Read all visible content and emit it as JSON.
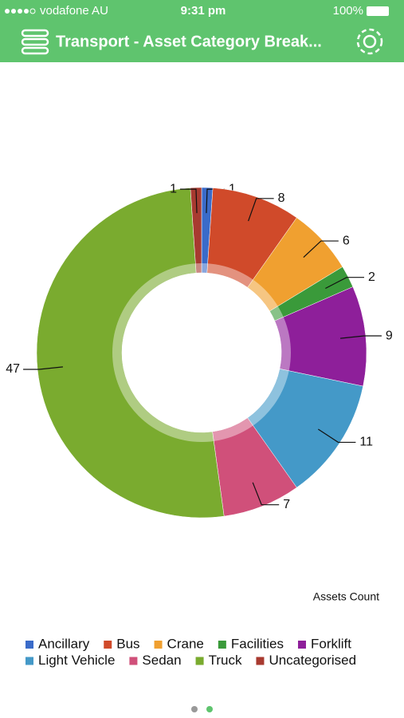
{
  "status_bar": {
    "carrier": "vodafone AU",
    "time": "9:31 pm",
    "battery": "100%"
  },
  "header": {
    "title": "Transport - Asset Category Break..."
  },
  "chart_data": {
    "type": "donut",
    "categories": [
      "Ancillary",
      "Bus",
      "Crane",
      "Facilities",
      "Forklift",
      "Light Vehicle",
      "Sedan",
      "Truck",
      "Uncategorised"
    ],
    "values": [
      1,
      8,
      6,
      2,
      9,
      11,
      7,
      47,
      1
    ],
    "colors": [
      "#3a6bc9",
      "#d04a2a",
      "#f0a030",
      "#3a9a3a",
      "#8e1f9a",
      "#4499c8",
      "#d0507a",
      "#7aab2f",
      "#a83a30"
    ],
    "value_axis_label": "Assets Count"
  }
}
